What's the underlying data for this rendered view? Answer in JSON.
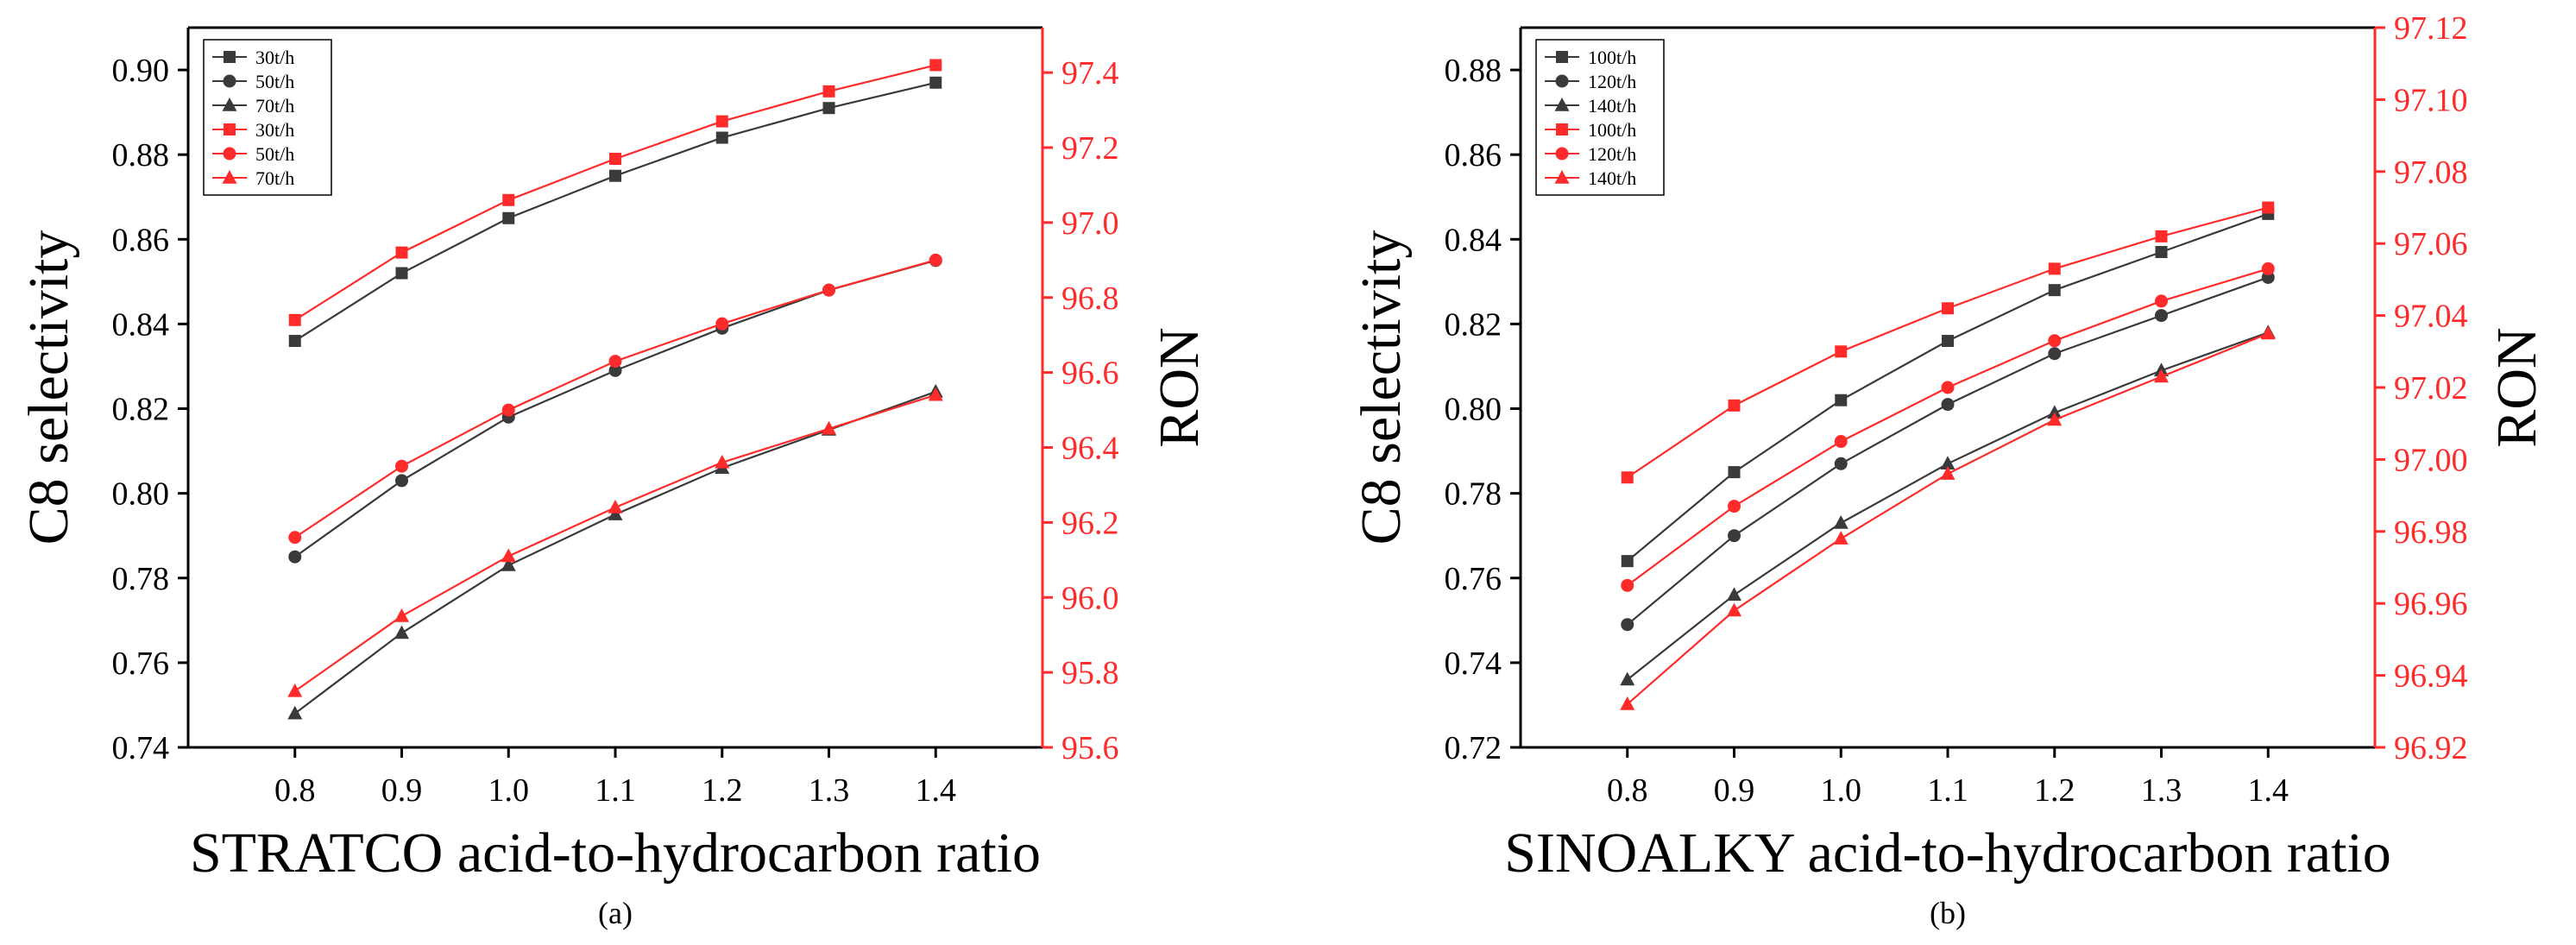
{
  "chart_data": [
    {
      "type": "line",
      "panel_label": "(a)",
      "xlabel": "STRATCO acid-to-hydrocarbon ratio",
      "ylabel": "C8 selectivity",
      "y2label": "RON",
      "x": [
        0.8,
        0.9,
        1.0,
        1.1,
        1.2,
        1.3,
        1.4
      ],
      "x_tick_labels": [
        "0.8",
        "0.9",
        "1.0",
        "1.1",
        "1.2",
        "1.3",
        "1.4"
      ],
      "xlim": [
        0.7,
        1.5
      ],
      "ylim": [
        0.74,
        0.91
      ],
      "y_ticks": [
        0.74,
        0.76,
        0.78,
        0.8,
        0.82,
        0.84,
        0.86,
        0.88,
        0.9
      ],
      "y_tick_labels": [
        "0.74",
        "0.76",
        "0.78",
        "0.80",
        "0.82",
        "0.84",
        "0.86",
        "0.88",
        "0.90"
      ],
      "y2lim": [
        95.6,
        97.52
      ],
      "y2_ticks": [
        95.6,
        95.8,
        96.0,
        96.2,
        96.4,
        96.6,
        96.8,
        97.0,
        97.2,
        97.4
      ],
      "y2_tick_labels": [
        "95.6",
        "95.8",
        "96.0",
        "96.2",
        "96.4",
        "96.6",
        "96.8",
        "97.0",
        "97.2",
        "97.4"
      ],
      "legend_position": "top-left",
      "series": [
        {
          "name": "30t/h",
          "axis": "left",
          "color": "#3a3a3a",
          "marker": "square",
          "values": [
            0.836,
            0.852,
            0.865,
            0.875,
            0.884,
            0.891,
            0.897
          ]
        },
        {
          "name": "50t/h",
          "axis": "left",
          "color": "#3a3a3a",
          "marker": "circle",
          "values": [
            0.785,
            0.803,
            0.818,
            0.829,
            0.839,
            0.848,
            0.855
          ]
        },
        {
          "name": "70t/h",
          "axis": "left",
          "color": "#3a3a3a",
          "marker": "triangle",
          "values": [
            0.748,
            0.767,
            0.783,
            0.795,
            0.806,
            0.815,
            0.824
          ]
        },
        {
          "name": "30t/h",
          "axis": "right",
          "color": "#ff2a2a",
          "marker": "square",
          "values": [
            96.74,
            96.92,
            97.06,
            97.17,
            97.27,
            97.35,
            97.42
          ]
        },
        {
          "name": "50t/h",
          "axis": "right",
          "color": "#ff2a2a",
          "marker": "circle",
          "values": [
            96.16,
            96.35,
            96.5,
            96.63,
            96.73,
            96.82,
            96.9
          ]
        },
        {
          "name": "70t/h",
          "axis": "right",
          "color": "#ff2a2a",
          "marker": "triangle",
          "values": [
            95.75,
            95.95,
            96.11,
            96.24,
            96.36,
            96.45,
            96.54
          ]
        }
      ]
    },
    {
      "type": "line",
      "panel_label": "(b)",
      "xlabel": "SINOALKY acid-to-hydrocarbon ratio",
      "ylabel": "C8 selectivity",
      "y2label": "RON",
      "x": [
        0.8,
        0.9,
        1.0,
        1.1,
        1.2,
        1.3,
        1.4
      ],
      "x_tick_labels": [
        "0.8",
        "0.9",
        "1.0",
        "1.1",
        "1.2",
        "1.3",
        "1.4"
      ],
      "xlim": [
        0.7,
        1.5
      ],
      "ylim": [
        0.72,
        0.89
      ],
      "y_ticks": [
        0.72,
        0.74,
        0.76,
        0.78,
        0.8,
        0.82,
        0.84,
        0.86,
        0.88
      ],
      "y_tick_labels": [
        "0.72",
        "0.74",
        "0.76",
        "0.78",
        "0.80",
        "0.82",
        "0.84",
        "0.86",
        "0.88"
      ],
      "y2lim": [
        96.92,
        97.12
      ],
      "y2_ticks": [
        96.92,
        96.94,
        96.96,
        96.98,
        97.0,
        97.02,
        97.04,
        97.06,
        97.08,
        97.1,
        97.12
      ],
      "y2_tick_labels": [
        "96.92",
        "96.94",
        "96.96",
        "96.98",
        "97.00",
        "97.02",
        "97.04",
        "97.06",
        "97.08",
        "97.10",
        "97.12"
      ],
      "legend_position": "top-left",
      "series": [
        {
          "name": "100t/h",
          "axis": "left",
          "color": "#3a3a3a",
          "marker": "square",
          "values": [
            0.764,
            0.785,
            0.802,
            0.816,
            0.828,
            0.837,
            0.846
          ]
        },
        {
          "name": "120t/h",
          "axis": "left",
          "color": "#3a3a3a",
          "marker": "circle",
          "values": [
            0.749,
            0.77,
            0.787,
            0.801,
            0.813,
            0.822,
            0.831
          ]
        },
        {
          "name": "140t/h",
          "axis": "left",
          "color": "#3a3a3a",
          "marker": "triangle",
          "values": [
            0.736,
            0.756,
            0.773,
            0.787,
            0.799,
            0.809,
            0.818
          ]
        },
        {
          "name": "100t/h",
          "axis": "right",
          "color": "#ff2a2a",
          "marker": "square",
          "values": [
            96.995,
            97.015,
            97.03,
            97.042,
            97.053,
            97.062,
            97.07
          ]
        },
        {
          "name": "120t/h",
          "axis": "right",
          "color": "#ff2a2a",
          "marker": "circle",
          "values": [
            96.965,
            96.987,
            97.005,
            97.02,
            97.033,
            97.044,
            97.053
          ]
        },
        {
          "name": "140t/h",
          "axis": "right",
          "color": "#ff2a2a",
          "marker": "triangle",
          "values": [
            96.932,
            96.958,
            96.978,
            96.996,
            97.011,
            97.023,
            97.035
          ]
        }
      ]
    }
  ]
}
